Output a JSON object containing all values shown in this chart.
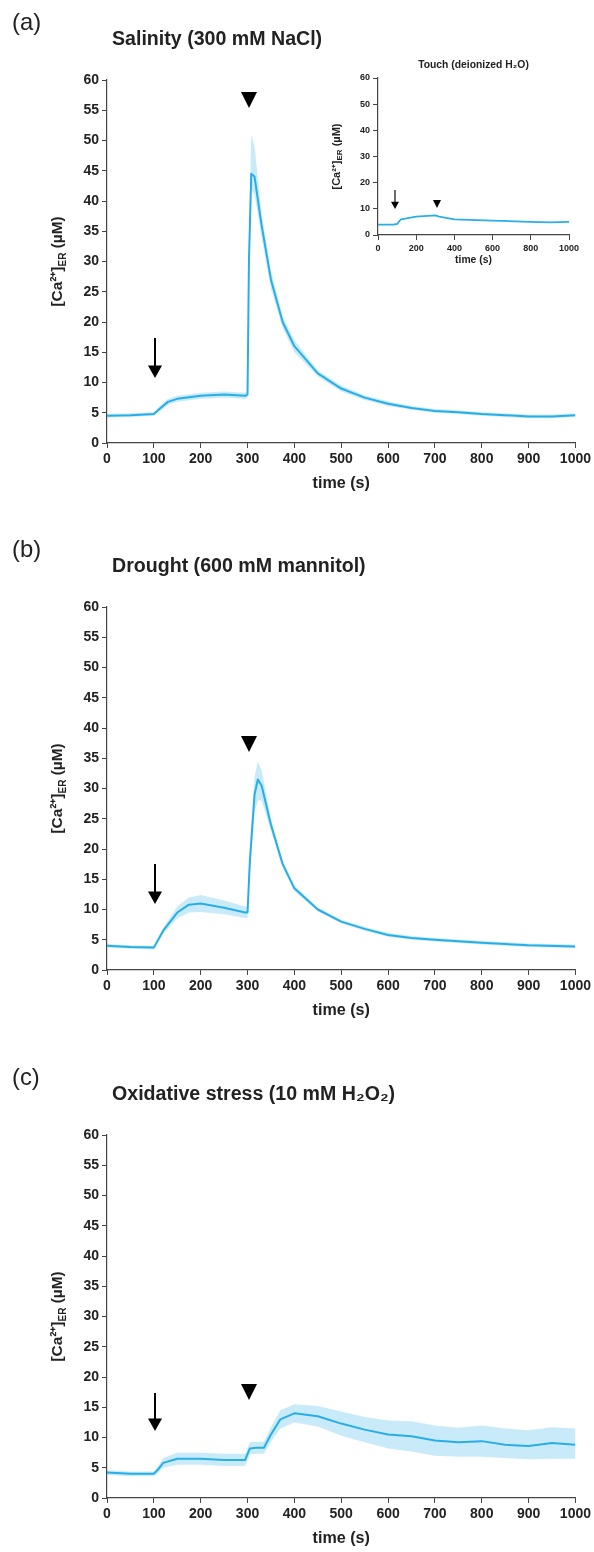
{
  "chart_data": [
    {
      "type": "line",
      "title": "Salinity (300 mM NaCl)",
      "xlabel": "time (s)",
      "ylabel": "[Ca²⁺]$_{ER}$ (µM)",
      "annotations": [
        "(a)"
      ],
      "xlim": [
        0,
        1000
      ],
      "xticks": [
        0,
        100,
        200,
        300,
        400,
        500,
        600,
        700,
        800,
        900,
        1000
      ],
      "ylim": [
        0,
        60
      ],
      "yticks": [
        0,
        5,
        10,
        15,
        20,
        25,
        30,
        35,
        40,
        45,
        50,
        55,
        60
      ],
      "grid": false,
      "legend": false,
      "marker": "none",
      "series": [
        {
          "color": "#29aee6",
          "x": [
            0,
            50,
            100,
            110,
            130,
            150,
            200,
            250,
            295,
            300,
            303,
            308,
            315,
            330,
            350,
            375,
            400,
            450,
            500,
            550,
            600,
            650,
            700,
            750,
            800,
            850,
            900,
            950,
            1000
          ],
          "values": [
            4.5,
            4.6,
            4.8,
            5.5,
            6.8,
            7.3,
            7.8,
            8,
            7.8,
            8,
            30,
            44.5,
            44,
            36,
            27,
            20,
            16,
            11.5,
            9,
            7.5,
            6.5,
            5.8,
            5.3,
            5.1,
            4.8,
            4.6,
            4.4,
            4.4,
            4.6
          ],
          "lower": [
            4.2,
            4.3,
            4.5,
            5.1,
            6.3,
            6.8,
            7.3,
            7.5,
            7.3,
            7.5,
            27,
            42,
            41,
            34,
            25.5,
            19,
            15,
            11,
            8.5,
            7.1,
            6.1,
            5.5,
            5,
            4.8,
            4.5,
            4.3,
            4.1,
            4.1,
            4.3
          ],
          "upper": [
            4.8,
            4.9,
            5.1,
            5.9,
            7.3,
            7.8,
            8.3,
            8.5,
            8.3,
            8.5,
            34,
            51,
            49,
            38,
            28.5,
            21,
            17,
            12,
            9.5,
            7.9,
            6.9,
            6.1,
            5.6,
            5.4,
            5.1,
            4.9,
            4.7,
            4.7,
            4.9
          ]
        }
      ]
    },
    {
      "type": "line",
      "title": "Touch (deionized H₂O)",
      "xlabel": "time (s)",
      "ylabel": "[Ca²⁺]$_{ER}$ (µM)",
      "xlim": [
        0,
        1000
      ],
      "xticks": [
        0,
        200,
        400,
        600,
        800,
        1000
      ],
      "ylim": [
        0,
        60
      ],
      "yticks": [
        0,
        10,
        20,
        30,
        40,
        50,
        60
      ],
      "grid": false,
      "legend": false,
      "marker": "none",
      "series": [
        {
          "color": "#29aee6",
          "x": [
            0,
            80,
            100,
            120,
            200,
            300,
            320,
            400,
            600,
            800,
            900,
            1000
          ],
          "values": [
            4,
            4,
            4.2,
            6,
            7,
            7.5,
            7,
            6,
            5.5,
            5,
            4.8,
            5
          ]
        }
      ]
    },
    {
      "type": "line",
      "title": "Drought (600 mM mannitol)",
      "xlabel": "time (s)",
      "ylabel": "[Ca²⁺]$_{ER}$ (µM)",
      "annotations": [
        "(b)"
      ],
      "xlim": [
        0,
        1000
      ],
      "xticks": [
        0,
        100,
        200,
        300,
        400,
        500,
        600,
        700,
        800,
        900,
        1000
      ],
      "ylim": [
        0,
        60
      ],
      "yticks": [
        0,
        5,
        10,
        15,
        20,
        25,
        30,
        35,
        40,
        45,
        50,
        55,
        60
      ],
      "grid": false,
      "legend": false,
      "marker": "none",
      "series": [
        {
          "color": "#29aee6",
          "x": [
            0,
            50,
            100,
            120,
            150,
            175,
            200,
            250,
            295,
            300,
            305,
            315,
            322,
            330,
            350,
            375,
            400,
            450,
            500,
            550,
            600,
            650,
            700,
            800,
            900,
            1000
          ],
          "values": [
            4,
            3.8,
            3.7,
            6.5,
            9.5,
            10.8,
            11,
            10.3,
            9.5,
            9.5,
            18,
            29,
            31.5,
            30.5,
            24,
            17.5,
            13.5,
            10,
            8,
            6.8,
            5.8,
            5.3,
            5,
            4.5,
            4.1,
            3.9
          ],
          "lower": [
            3.7,
            3.5,
            3.4,
            6,
            8.5,
            9.5,
            9.6,
            9.2,
            8.6,
            8.6,
            16,
            26,
            28,
            28,
            23,
            17,
            13,
            9.7,
            7.7,
            6.5,
            5.5,
            5,
            4.7,
            4.2,
            3.8,
            3.6
          ],
          "upper": [
            4.3,
            4.1,
            4,
            7,
            10.5,
            12,
            12.4,
            11.5,
            10.5,
            10.5,
            20,
            32,
            34.5,
            33,
            25,
            18,
            14,
            10.3,
            8.3,
            7.1,
            6.1,
            5.6,
            5.3,
            4.8,
            4.4,
            4.2
          ]
        }
      ]
    },
    {
      "type": "line",
      "title": "Oxidative stress (10 mM H₂O₂)",
      "xlabel": "time (s)",
      "ylabel": "[Ca²⁺]$_{ER}$ (µM)",
      "annotations": [
        "(c)"
      ],
      "xlim": [
        0,
        1000
      ],
      "xticks": [
        0,
        100,
        200,
        300,
        400,
        500,
        600,
        700,
        800,
        900,
        1000
      ],
      "ylim": [
        0,
        60
      ],
      "yticks": [
        0,
        5,
        10,
        15,
        20,
        25,
        30,
        35,
        40,
        45,
        50,
        55,
        60
      ],
      "grid": false,
      "legend": false,
      "marker": "none",
      "series": [
        {
          "color": "#29aee6",
          "x": [
            0,
            50,
            100,
            110,
            120,
            150,
            200,
            250,
            295,
            305,
            320,
            335,
            350,
            370,
            400,
            450,
            500,
            550,
            600,
            650,
            700,
            750,
            800,
            850,
            900,
            950,
            1000
          ],
          "values": [
            4.2,
            4,
            4,
            4.8,
            5.8,
            6.5,
            6.5,
            6.3,
            6.3,
            8.2,
            8.3,
            8.3,
            10.5,
            13,
            14,
            13.5,
            12.3,
            11.3,
            10.5,
            10.2,
            9.5,
            9.2,
            9.4,
            8.8,
            8.6,
            9.1,
            8.8
          ],
          "lower": [
            3.8,
            3.6,
            3.6,
            4.2,
            5,
            5.5,
            5.5,
            5.3,
            5.3,
            7.2,
            7.3,
            7.3,
            9.3,
            11.5,
            12.5,
            11.8,
            10.3,
            9.2,
            8.2,
            7.7,
            7,
            6.8,
            6.8,
            6.6,
            6.4,
            6.5,
            6.5
          ],
          "upper": [
            4.6,
            4.4,
            4.4,
            5.4,
            6.6,
            7.5,
            7.5,
            7.3,
            7.3,
            9.2,
            9.3,
            9.3,
            11.7,
            14.5,
            15.5,
            15.2,
            14.3,
            13.4,
            12.8,
            12.7,
            12,
            11.6,
            12,
            11.5,
            11.2,
            11.7,
            11.5
          ]
        }
      ]
    }
  ]
}
